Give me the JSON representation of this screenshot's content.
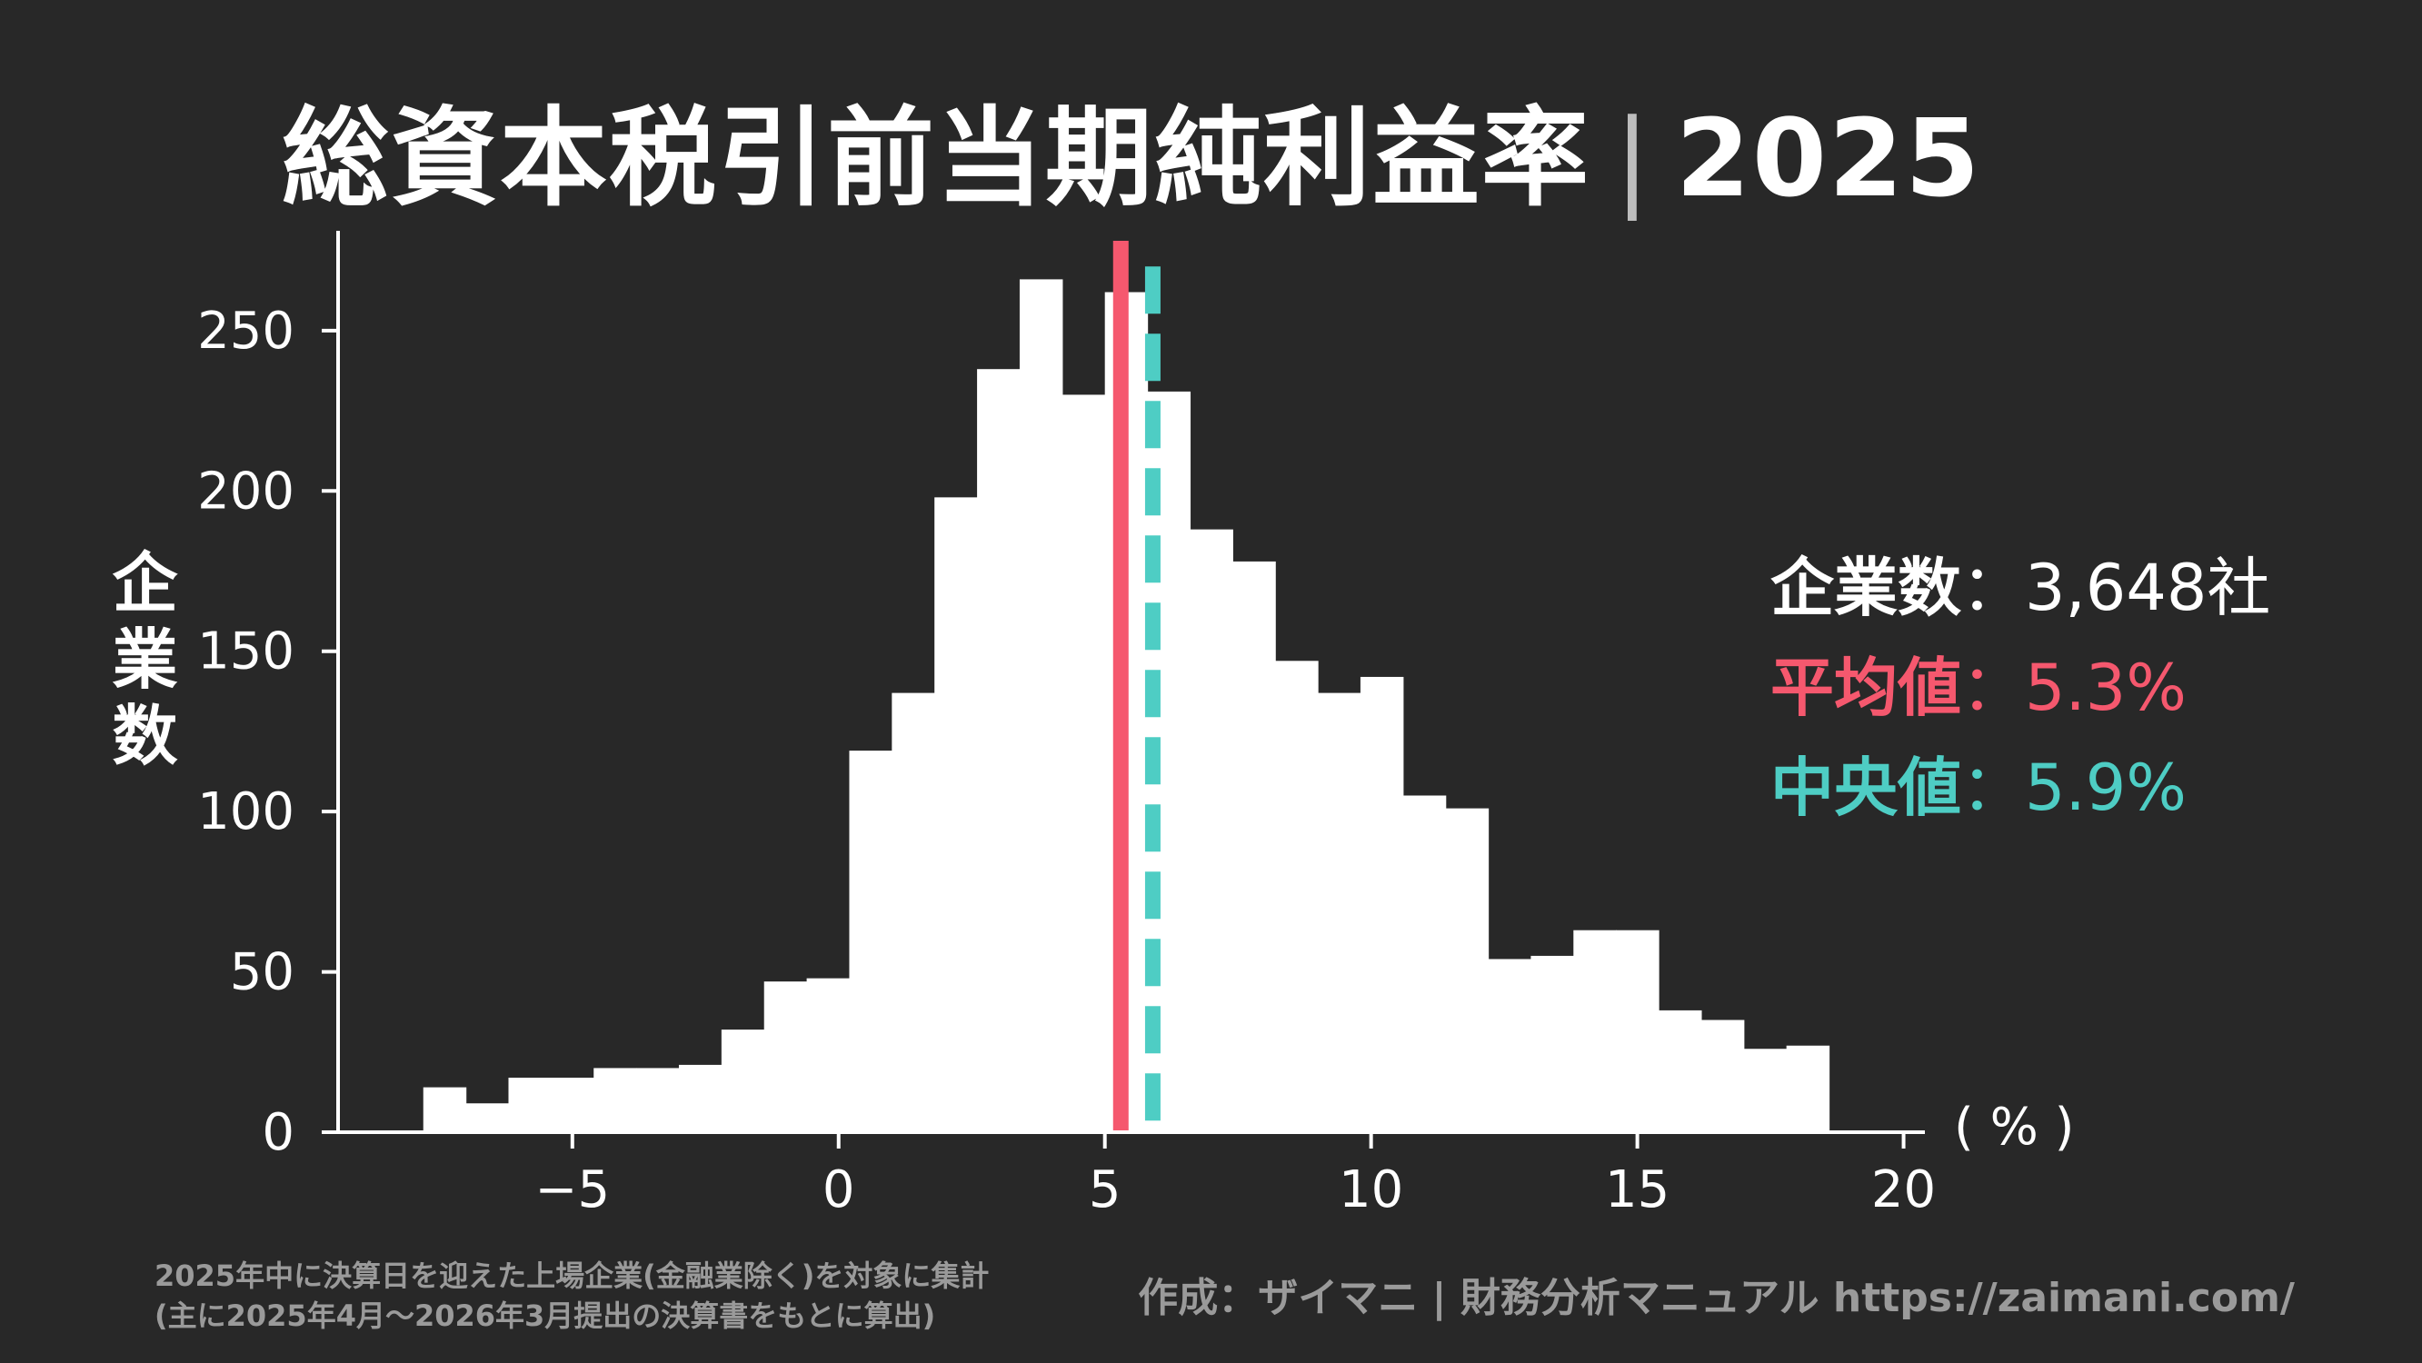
{
  "title_main": "総資本税引前当期純利益率",
  "title_sep": "|",
  "title_year": "2025",
  "y_axis_label": "企業数",
  "x_unit": "( % )",
  "stats": {
    "count_label": "企業数",
    "count_value": "：3,648社",
    "mean_label": "平均値",
    "mean_value": "：5.3%",
    "median_label": "中央値",
    "median_value": "：5.9%"
  },
  "footnote_line1": "2025年中に決算日を迎えた上場企業(金融業除く)を対象に集計",
  "footnote_line2": "(主に2025年4月～2026年3月提出の決算書をもとに算出)",
  "credit": "作成：ザイマニ | 財務分析マニュアル https://zaimani.com/",
  "colors": {
    "background": "#282828",
    "bars": "#ffffff",
    "mean": "#f5586e",
    "median": "#4ecdc4",
    "muted": "#9a9a9a"
  },
  "chart_data": {
    "type": "bar",
    "bin_width": 0.8,
    "bin_start": -7.8,
    "values": [
      14,
      9,
      17,
      17,
      20,
      20,
      21,
      32,
      47,
      48,
      119,
      137,
      198,
      238,
      266,
      230,
      262,
      231,
      188,
      178,
      147,
      137,
      142,
      105,
      101,
      54,
      55,
      63,
      63,
      38,
      35,
      26,
      27
    ],
    "mean": 5.3,
    "median": 5.9,
    "xlim": [
      -9.4,
      20.4
    ],
    "ylim": [
      0,
      280
    ],
    "x_ticks": [
      -5,
      0,
      5,
      10,
      15,
      20
    ],
    "x_tick_labels": [
      "−5",
      "0",
      "5",
      "10",
      "15",
      "20"
    ],
    "y_ticks": [
      0,
      50,
      100,
      150,
      200,
      250
    ],
    "y_tick_labels": [
      "0",
      "50",
      "100",
      "150",
      "200",
      "250"
    ],
    "xlabel": "( % )",
    "ylabel": "企業数",
    "grid": false
  }
}
